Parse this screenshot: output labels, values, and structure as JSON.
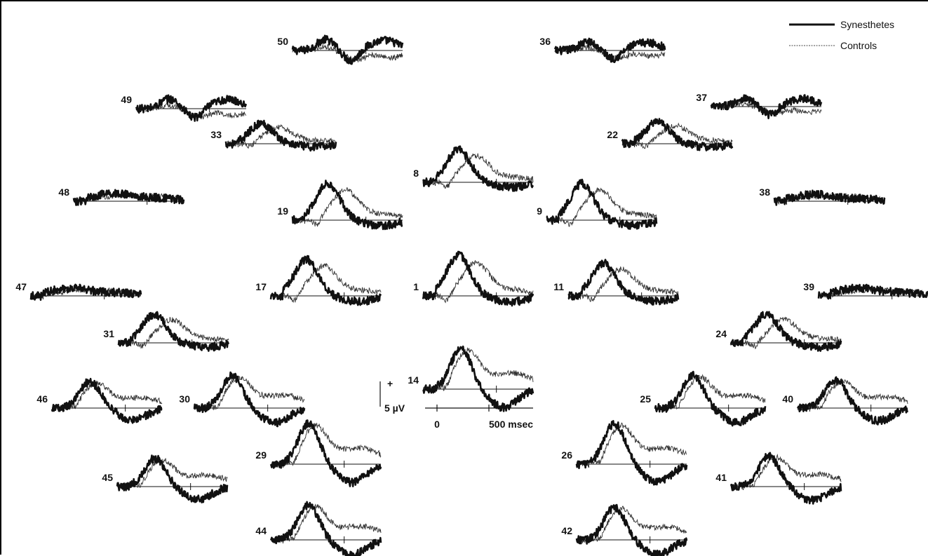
{
  "chart_data": {
    "type": "line",
    "layout": "electrode-montage",
    "legend": {
      "position": "top-right",
      "entries": [
        {
          "name": "Synesthetes",
          "style": "thick solid"
        },
        {
          "name": "Controls",
          "style": "thin dotted"
        }
      ]
    },
    "scale_bar": {
      "polarity_label": "+",
      "amplitude_label": "5 µV",
      "time_tick_labels": [
        "0",
        "500 msec"
      ]
    },
    "x_unit": "msec",
    "x_range": [
      -100,
      800
    ],
    "channels": [
      {
        "label": "50",
        "profile": "late",
        "amp": 0.45
      },
      {
        "label": "36",
        "profile": "late",
        "amp": 0.35
      },
      {
        "label": "49",
        "profile": "late",
        "amp": 0.4
      },
      {
        "label": "37",
        "profile": "late",
        "amp": 0.35
      },
      {
        "label": "33",
        "profile": "early",
        "amp": 0.5
      },
      {
        "label": "22",
        "profile": "early",
        "amp": 0.55
      },
      {
        "label": "8",
        "profile": "early",
        "amp": 0.8
      },
      {
        "label": "48",
        "profile": "flat",
        "amp": 0.35
      },
      {
        "label": "38",
        "profile": "flat",
        "amp": 0.3
      },
      {
        "label": "19",
        "profile": "early",
        "amp": 0.9
      },
      {
        "label": "9",
        "profile": "early",
        "amp": 0.9
      },
      {
        "label": "47",
        "profile": "flat",
        "amp": 0.35
      },
      {
        "label": "17",
        "profile": "early",
        "amp": 0.9
      },
      {
        "label": "1",
        "profile": "early",
        "amp": 1.0
      },
      {
        "label": "11",
        "profile": "early",
        "amp": 0.8
      },
      {
        "label": "39",
        "profile": "flat",
        "amp": 0.35
      },
      {
        "label": "31",
        "profile": "early",
        "amp": 0.7
      },
      {
        "label": "24",
        "profile": "early",
        "amp": 0.7
      },
      {
        "label": "14",
        "profile": "peaked",
        "amp": 1.0
      },
      {
        "label": "46",
        "profile": "peaked",
        "amp": 0.65
      },
      {
        "label": "30",
        "profile": "peaked",
        "amp": 0.8
      },
      {
        "label": "25",
        "profile": "peaked",
        "amp": 0.8
      },
      {
        "label": "40",
        "profile": "peaked",
        "amp": 0.7
      },
      {
        "label": "29",
        "profile": "peaked",
        "amp": 1.0
      },
      {
        "label": "26",
        "profile": "peaked",
        "amp": 1.0
      },
      {
        "label": "45",
        "profile": "peaked",
        "amp": 0.7
      },
      {
        "label": "41",
        "profile": "peaked",
        "amp": 0.75
      },
      {
        "label": "44",
        "profile": "peaked",
        "amp": 0.85
      },
      {
        "label": "42",
        "profile": "peaked",
        "amp": 0.8
      }
    ]
  }
}
